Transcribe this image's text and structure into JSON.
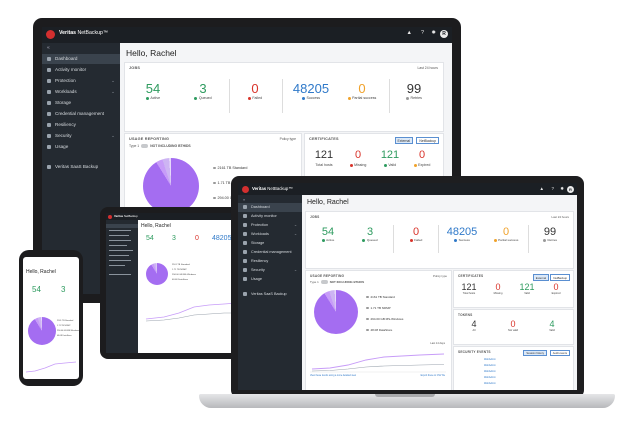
{
  "app": {
    "brand_bold": "Veritas",
    "brand_rest": " NetBackup",
    "brand_tm": "™",
    "greeting": "Hello, Rachel",
    "user_initial": "R"
  },
  "topbar_icons": [
    "bell-icon",
    "help-icon",
    "gear-icon"
  ],
  "topbar_glyphs": {
    "bell": "▲",
    "help": "?",
    "gear": "✹"
  },
  "sidebar": {
    "collapse": "«",
    "items": [
      {
        "label": "Dashboard",
        "icon": "dashboard-icon",
        "active": true
      },
      {
        "label": "Activity monitor",
        "icon": "activity-icon"
      },
      {
        "label": "Protection",
        "icon": "shield-icon",
        "chevron": "⌄"
      },
      {
        "label": "Workloads",
        "icon": "workloads-icon",
        "chevron": "⌄"
      },
      {
        "label": "Storage",
        "icon": "storage-icon"
      },
      {
        "label": "Credential management",
        "icon": "key-icon"
      },
      {
        "label": "Resiliency",
        "icon": "resiliency-icon"
      },
      {
        "label": "Security",
        "icon": "lock-icon",
        "chevron": "⌄"
      },
      {
        "label": "Usage",
        "icon": "usage-icon"
      }
    ],
    "saas_link": "Veritas SaaS Backup"
  },
  "jobs": {
    "title": "JOBS",
    "range": "Last 24 hours",
    "stats": [
      {
        "value": "54",
        "label": "Active",
        "color": "#2e9b5f"
      },
      {
        "value": "3",
        "label": "Queued",
        "color": "#2e9b5f"
      },
      {
        "value": "0",
        "label": "Failed",
        "color": "#d9342b"
      },
      {
        "value": "48205",
        "label": "Success",
        "color": "#2f79c9"
      },
      {
        "value": "0",
        "label": "Partial success",
        "color": "#f0a22b"
      },
      {
        "value": "99",
        "label": "Retries",
        "color": "#333333"
      }
    ]
  },
  "usage": {
    "title": "USAGE REPORTING",
    "type_select": "Policy type",
    "toggle_prefix": "Type 1",
    "toggle_label": "NOT INCLUDING BTHIDS",
    "legend": [
      "2161 TB  Standard",
      "1.71 TB  NDMP",
      "294.00 GB  MS-Windows",
      "48.08  DataStore"
    ],
    "tablet_legend": [
      "2161 TB Standard",
      "1.71 TB NDMP",
      "294.00 GB MS-Windows",
      "48.08 DataStore"
    ]
  },
  "certificates": {
    "title": "CERTIFICATES",
    "tabs": [
      "External",
      "NetBackup"
    ],
    "stats": [
      {
        "value": "121",
        "label": "Total hosts",
        "color": "#333333"
      },
      {
        "value": "0",
        "label": "Missing",
        "color": "#d9342b"
      },
      {
        "value": "121",
        "label": "Valid",
        "color": "#2e9b5f"
      },
      {
        "value": "0",
        "label": "Expired",
        "color": "#d9342b"
      }
    ]
  },
  "tokens": {
    "title": "TOKENS",
    "stats": [
      {
        "value": "4",
        "label": "All",
        "color": "#333333"
      },
      {
        "value": "0",
        "label": "Not valid",
        "color": "#d9342b"
      },
      {
        "value": "4",
        "label": "Valid",
        "color": "#2e9b5f"
      }
    ]
  },
  "security_events": {
    "title": "SECURITY EVENTS",
    "tabs": [
      "Session history",
      "Audit events"
    ],
    "events": [
      "WebAdmin",
      "WebAdmin",
      "WebAdmin",
      "WebAdmin",
      "WebAdmin"
    ]
  },
  "trend": {
    "x_labels": [
      "2021-02-03",
      "2021-02-07",
      "2021-02-11",
      "2021-02-15",
      "2021-02-19",
      "2021-02-23",
      "2021-02-27",
      "2021-03-03"
    ],
    "select": "Last 14 days",
    "footer_left": "View these trends using a more detailed view",
    "footer_right": "Export these to CSV file"
  },
  "colors": {
    "sidebar": "#242a31",
    "topbar": "#1b1f24",
    "brand_red": "#d32f2f",
    "pie_primary": "#a46df1"
  }
}
